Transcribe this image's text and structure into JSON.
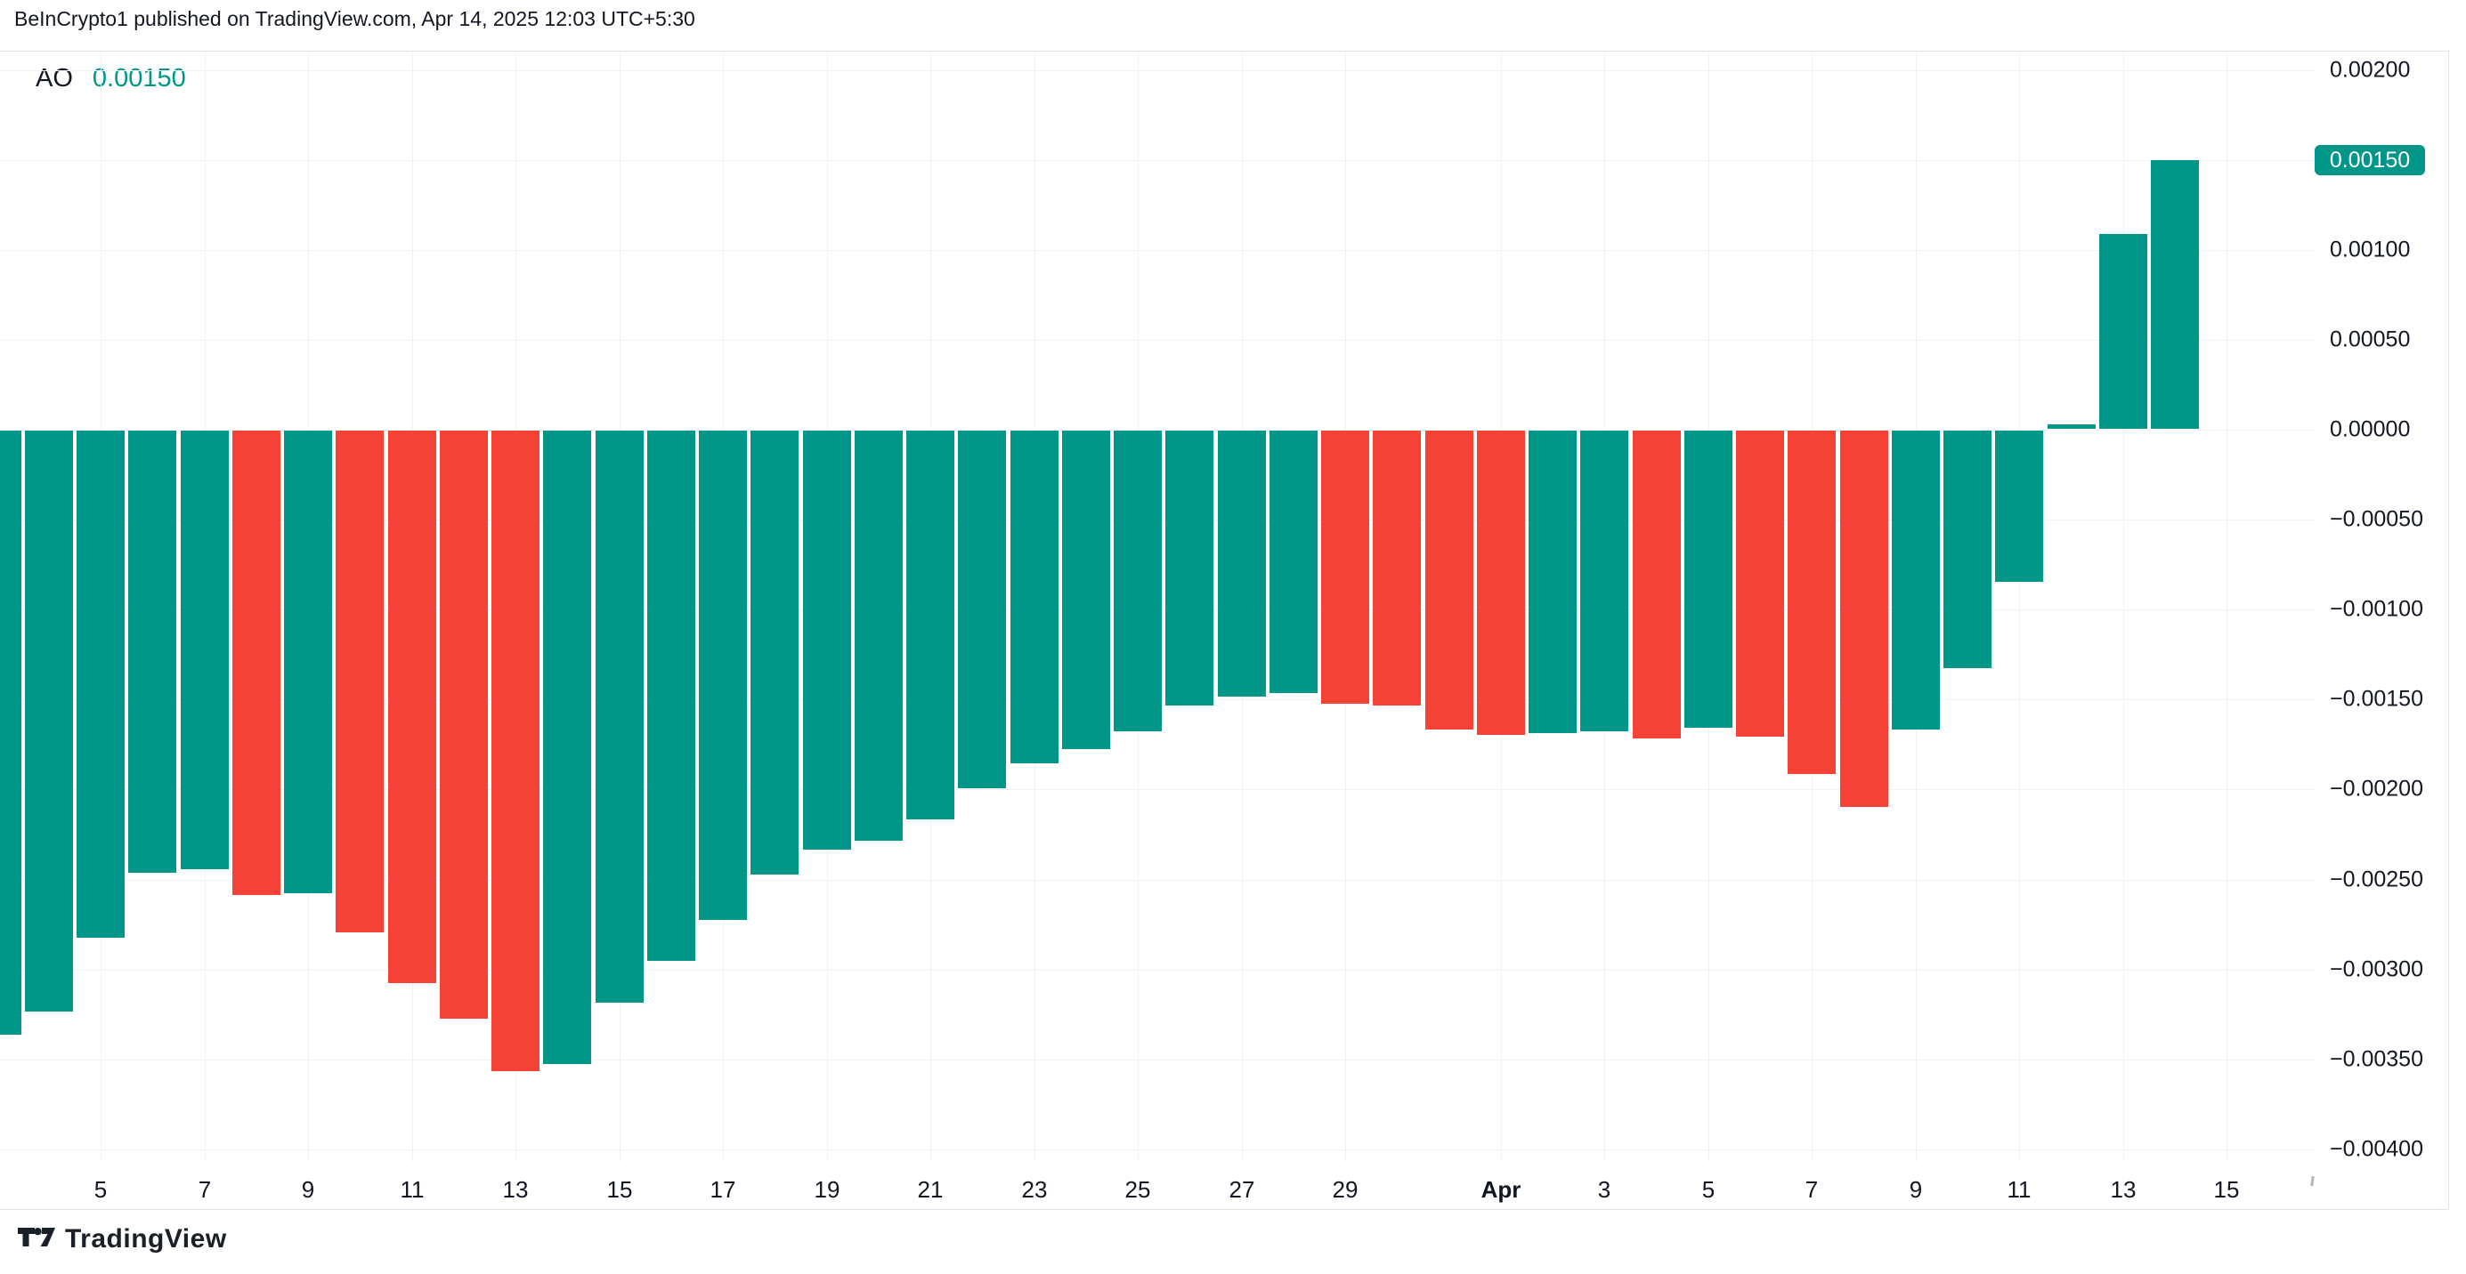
{
  "header": {
    "title": "BeInCrypto1 published on TradingView.com, Apr 14, 2025 12:03 UTC+5:30"
  },
  "legend": {
    "indicator": "AO",
    "value": "0.00150",
    "value_color": "#009688"
  },
  "colors": {
    "up": "#009688",
    "down": "#F44336",
    "axis_text": "#131722",
    "grid": "#F0F2F5",
    "border": "#E0E3EB",
    "badge_bg": "#009688",
    "badge_text": "#ffffff"
  },
  "chart_data": {
    "type": "bar",
    "title": "AO (Awesome Oscillator) daily histogram",
    "grid": true,
    "ylim": [
      -0.0044,
      0.0022
    ],
    "categories": [
      "Mar 3",
      "Mar 4",
      "Mar 5",
      "Mar 6",
      "Mar 7",
      "Mar 8",
      "Mar 9",
      "Mar 10",
      "Mar 11",
      "Mar 12",
      "Mar 13",
      "Mar 14",
      "Mar 15",
      "Mar 16",
      "Mar 17",
      "Mar 18",
      "Mar 19",
      "Mar 20",
      "Mar 21",
      "Mar 22",
      "Mar 23",
      "Mar 24",
      "Mar 25",
      "Mar 26",
      "Mar 27",
      "Mar 28",
      "Mar 29",
      "Mar 30",
      "Mar 31",
      "Apr 1",
      "Apr 2",
      "Apr 3",
      "Apr 4",
      "Apr 5",
      "Apr 6",
      "Apr 7",
      "Apr 8",
      "Apr 9",
      "Apr 10",
      "Apr 11",
      "Apr 12",
      "Apr 13",
      "Apr 14"
    ],
    "values": [
      -0.00336,
      -0.00323,
      -0.00282,
      -0.00246,
      -0.00244,
      -0.00258,
      -0.00257,
      -0.00279,
      -0.00307,
      -0.00327,
      -0.00356,
      -0.00352,
      -0.00318,
      -0.00295,
      -0.00272,
      -0.00247,
      -0.00233,
      -0.00228,
      -0.00216,
      -0.00199,
      -0.00185,
      -0.00177,
      -0.00167,
      -0.00153,
      -0.00148,
      -0.00146,
      -0.00152,
      -0.00153,
      -0.00166,
      -0.00169,
      -0.00168,
      -0.00167,
      -0.00171,
      -0.00165,
      -0.0017,
      -0.00191,
      -0.00209,
      -0.00166,
      -0.00132,
      -0.00084,
      3e-05,
      0.00109,
      0.0015
    ],
    "trends": [
      "up",
      "up",
      "up",
      "up",
      "up",
      "down",
      "up",
      "down",
      "down",
      "down",
      "down",
      "up",
      "up",
      "up",
      "up",
      "up",
      "up",
      "up",
      "up",
      "up",
      "up",
      "up",
      "up",
      "up",
      "up",
      "up",
      "down",
      "down",
      "down",
      "down",
      "up",
      "up",
      "down",
      "up",
      "down",
      "down",
      "down",
      "up",
      "up",
      "up",
      "up",
      "up",
      "up"
    ],
    "y_ticks": [
      {
        "label": "0.00200",
        "value": 0.002
      },
      {
        "label": "0.00150",
        "value": 0.0015,
        "badge": true
      },
      {
        "label": "0.00100",
        "value": 0.001
      },
      {
        "label": "0.00050",
        "value": 0.0005
      },
      {
        "label": "0.00000",
        "value": 0.0
      },
      {
        "label": "−0.00050",
        "value": -0.0005
      },
      {
        "label": "−0.00100",
        "value": -0.001
      },
      {
        "label": "−0.00150",
        "value": -0.0015
      },
      {
        "label": "−0.00200",
        "value": -0.002
      },
      {
        "label": "−0.00250",
        "value": -0.0025
      },
      {
        "label": "−0.00300",
        "value": -0.003
      },
      {
        "label": "−0.00350",
        "value": -0.0035
      },
      {
        "label": "−0.00400",
        "value": -0.004
      }
    ],
    "x_labels": [
      {
        "text": "5",
        "bar_index": 2
      },
      {
        "text": "7",
        "bar_index": 4
      },
      {
        "text": "9",
        "bar_index": 6
      },
      {
        "text": "11",
        "bar_index": 8
      },
      {
        "text": "13",
        "bar_index": 10
      },
      {
        "text": "15",
        "bar_index": 12
      },
      {
        "text": "17",
        "bar_index": 14
      },
      {
        "text": "19",
        "bar_index": 16
      },
      {
        "text": "21",
        "bar_index": 18
      },
      {
        "text": "23",
        "bar_index": 20
      },
      {
        "text": "25",
        "bar_index": 22
      },
      {
        "text": "27",
        "bar_index": 24
      },
      {
        "text": "29",
        "bar_index": 26
      },
      {
        "text": "Apr",
        "bar_index": 29,
        "bold": true
      },
      {
        "text": "3",
        "bar_index": 31
      },
      {
        "text": "5",
        "bar_index": 33
      },
      {
        "text": "7",
        "bar_index": 35
      },
      {
        "text": "9",
        "bar_index": 37
      },
      {
        "text": "11",
        "bar_index": 39
      },
      {
        "text": "13",
        "bar_index": 41
      },
      {
        "text": "15",
        "bar_index": 43
      }
    ],
    "last_value_badge": "0.00150"
  },
  "footer": {
    "brand": "TradingView"
  }
}
